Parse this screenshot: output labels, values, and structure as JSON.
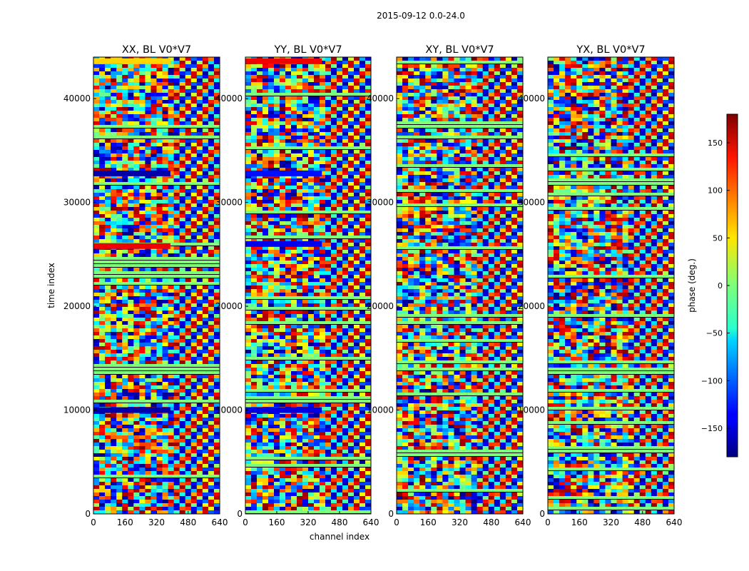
{
  "chart_data": {
    "type": "heatmap",
    "suptitle": "2015-09-12 0.0-24.0",
    "panels": [
      {
        "title": "XX, BL V0*V7",
        "pol": "XX"
      },
      {
        "title": "YY, BL V0*V7",
        "pol": "YY"
      },
      {
        "title": "XY, BL V0*V7",
        "pol": "XY"
      },
      {
        "title": "YX, BL V0*V7",
        "pol": "YX"
      }
    ],
    "xlabel": "channel index",
    "ylabel": "time index",
    "xlim": [
      0,
      640
    ],
    "ylim": [
      0,
      44000
    ],
    "xticks": [
      0,
      160,
      320,
      480,
      640
    ],
    "yticks": [
      0,
      10000,
      20000,
      30000,
      40000
    ],
    "colorbar": {
      "label": "phase (deg.)",
      "range": [
        -180,
        180
      ],
      "ticks": [
        150,
        100,
        50,
        0,
        -50,
        -100,
        -150
      ],
      "tick_labels": [
        "150",
        "100",
        "50",
        "0",
        "−50",
        "−100",
        "−150"
      ],
      "colormap": "jet"
    },
    "bright_bands": [
      {
        "panel": "XX",
        "y": 10000,
        "ch_end": 390,
        "phase": -165
      },
      {
        "panel": "XX",
        "y": 25800,
        "ch_end": 390,
        "phase": 140
      },
      {
        "panel": "XX",
        "y": 32800,
        "ch_end": 390,
        "phase": -165
      },
      {
        "panel": "XX",
        "y": 43600,
        "ch_end": 390,
        "phase": 60
      },
      {
        "panel": "YY",
        "y": 10000,
        "ch_end": 390,
        "phase": -145
      },
      {
        "panel": "YY",
        "y": 26000,
        "ch_end": 390,
        "phase": -140
      },
      {
        "panel": "YY",
        "y": 32800,
        "ch_end": 390,
        "phase": -130
      },
      {
        "panel": "YY",
        "y": 43600,
        "ch_end": 390,
        "phase": 140
      }
    ]
  }
}
